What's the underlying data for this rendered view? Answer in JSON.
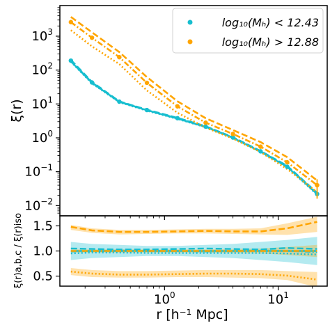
{
  "chart_data": [
    {
      "panel": "top",
      "type": "line",
      "xscale": "log",
      "yscale": "log",
      "xlim": [
        0.12,
        27
      ],
      "ylim": [
        0.005,
        8000
      ],
      "ylabel": "ξ(r)",
      "yticks": [
        0.01,
        0.1,
        1,
        10,
        100,
        1000
      ],
      "ytick_labels": [
        {
          "base": "10",
          "exp": "−2"
        },
        {
          "base": "10",
          "exp": "−1"
        },
        {
          "base": "10",
          "exp": "0"
        },
        {
          "base": "10",
          "exp": "1"
        },
        {
          "base": "10",
          "exp": "2"
        },
        {
          "base": "10",
          "exp": "3"
        }
      ],
      "legend": {
        "placement": "top-right",
        "entries": [
          {
            "label": "log₁₀(Mₕ) < 12.43",
            "color": "#17becf"
          },
          {
            "label": "log₁₀(Mₕ) > 12.88",
            "color": "#ffa500"
          }
        ]
      },
      "x": [
        0.15,
        0.23,
        0.4,
        0.7,
        1.3,
        2.3,
        4,
        7,
        12,
        22
      ],
      "series": [
        {
          "group": "low-mass",
          "style": "solid",
          "color": "#17becf",
          "values": [
            180,
            42,
            11.5,
            6.5,
            3.7,
            2.1,
            1.0,
            0.39,
            0.14,
            0.022
          ]
        },
        {
          "group": "low-mass",
          "style": "dashed",
          "color": "#17becf",
          "values": [
            200,
            45,
            12,
            6.8,
            3.9,
            2.2,
            1.05,
            0.41,
            0.15,
            0.024
          ]
        },
        {
          "group": "low-mass",
          "style": "dashdot",
          "color": "#17becf",
          "values": [
            190,
            43,
            11.7,
            6.6,
            3.8,
            2.15,
            1.02,
            0.4,
            0.145,
            0.023
          ]
        },
        {
          "group": "low-mass",
          "style": "dotted",
          "color": "#17becf",
          "values": [
            175,
            40,
            11.2,
            6.3,
            3.6,
            2.05,
            0.97,
            0.38,
            0.135,
            0.021
          ]
        },
        {
          "group": "high-mass",
          "style": "dashed",
          "color": "#ffa500",
          "values": [
            3700,
            1300,
            340,
            62,
            12,
            3.8,
            1.7,
            0.75,
            0.27,
            0.055
          ]
        },
        {
          "group": "high-mass",
          "style": "dashdot",
          "color": "#ffa500",
          "values": [
            2600,
            900,
            240,
            42,
            8.5,
            2.8,
            1.3,
            0.55,
            0.19,
            0.04
          ]
        },
        {
          "group": "high-mass",
          "style": "dotted",
          "color": "#ffa500",
          "values": [
            1500,
            500,
            150,
            25,
            5.5,
            2.0,
            0.95,
            0.38,
            0.12,
            0.025
          ]
        }
      ],
      "markers": [
        {
          "color": "#17becf",
          "values": [
            190,
            43,
            11.7,
            6.6,
            3.8,
            2.15,
            1.02,
            0.4,
            0.14,
            0.022
          ]
        },
        {
          "color": "#ffa500",
          "values": [
            2600,
            900,
            240,
            42,
            8.5,
            2.8,
            1.3,
            0.55,
            0.19,
            0.04
          ]
        }
      ],
      "errorbars": [
        {
          "color": "#ffa500",
          "x": 22,
          "y": 0.04,
          "low": 0.016,
          "high": 0.06
        }
      ]
    },
    {
      "panel": "bottom",
      "type": "line",
      "xscale": "log",
      "xlim": [
        0.12,
        27
      ],
      "ylim": [
        0.3,
        1.7
      ],
      "xlabel": "r [h⁻¹ Mpc]",
      "ylabel": "ξ(r)a,b,c / ξ(r)iso",
      "yticks": [
        0.5,
        1.0,
        1.5
      ],
      "ytick_labels": [
        "0.5",
        "1.0",
        "1.5"
      ],
      "xticks": [
        1,
        10
      ],
      "xtick_labels": [
        {
          "base": "10",
          "exp": "0"
        },
        {
          "base": "10",
          "exp": "1"
        }
      ],
      "x": [
        0.15,
        0.23,
        0.4,
        0.7,
        1.3,
        2.3,
        4,
        7,
        12,
        22
      ],
      "bands": [
        {
          "color": "#17becf",
          "low": [
            0.82,
            0.86,
            0.88,
            0.9,
            0.9,
            0.88,
            0.86,
            0.82,
            0.78,
            0.72
          ],
          "high": [
            1.18,
            1.14,
            1.12,
            1.1,
            1.1,
            1.12,
            1.14,
            1.18,
            1.22,
            1.28
          ]
        },
        {
          "color": "#ffa500",
          "low": [
            1.42,
            1.36,
            1.33,
            1.34,
            1.35,
            1.35,
            1.34,
            1.33,
            1.32,
            1.38
          ],
          "high": [
            1.52,
            1.45,
            1.42,
            1.42,
            1.43,
            1.44,
            1.44,
            1.45,
            1.55,
            1.68
          ]
        },
        {
          "color": "#ffa500",
          "low": [
            0.52,
            0.48,
            0.47,
            0.47,
            0.48,
            0.48,
            0.47,
            0.46,
            0.42,
            0.28
          ],
          "high": [
            0.66,
            0.62,
            0.6,
            0.6,
            0.61,
            0.62,
            0.62,
            0.62,
            0.6,
            0.58
          ]
        },
        {
          "color": "#ffa500",
          "low": [
            0.97,
            0.97,
            0.97,
            0.97,
            0.97,
            0.97,
            0.96,
            0.95,
            0.92,
            0.88
          ],
          "high": [
            1.03,
            1.03,
            1.03,
            1.03,
            1.03,
            1.03,
            1.04,
            1.05,
            1.08,
            1.12
          ]
        }
      ],
      "series": [
        {
          "group": "low-mass",
          "style": "solid",
          "color": "#17becf",
          "values": [
            1.0,
            1.0,
            1.0,
            1.0,
            1.0,
            1.0,
            1.0,
            1.0,
            1.0,
            1.0
          ]
        },
        {
          "group": "low-mass",
          "style": "dashed",
          "color": "#17becf",
          "values": [
            1.05,
            1.04,
            1.03,
            1.03,
            1.04,
            1.05,
            1.04,
            1.03,
            1.06,
            1.04
          ]
        },
        {
          "group": "low-mass",
          "style": "dashdot",
          "color": "#17becf",
          "values": [
            0.99,
            1.0,
            1.01,
            1.0,
            1.0,
            0.99,
            1.0,
            1.01,
            1.0,
            0.98
          ]
        },
        {
          "group": "low-mass",
          "style": "dotted",
          "color": "#17becf",
          "values": [
            0.95,
            0.97,
            0.97,
            0.96,
            0.96,
            0.96,
            0.96,
            0.96,
            0.95,
            0.93
          ]
        },
        {
          "group": "high-mass",
          "style": "dashed",
          "color": "#ffa500",
          "values": [
            1.48,
            1.41,
            1.38,
            1.38,
            1.39,
            1.4,
            1.39,
            1.39,
            1.45,
            1.58
          ]
        },
        {
          "group": "high-mass",
          "style": "dashdot",
          "color": "#ffa500",
          "values": [
            1.0,
            1.0,
            1.0,
            1.0,
            1.0,
            1.0,
            1.0,
            1.0,
            1.0,
            1.0
          ]
        },
        {
          "group": "high-mass",
          "style": "dotted",
          "color": "#ffa500",
          "values": [
            0.59,
            0.55,
            0.53,
            0.53,
            0.54,
            0.55,
            0.55,
            0.54,
            0.51,
            0.43
          ]
        }
      ]
    }
  ]
}
